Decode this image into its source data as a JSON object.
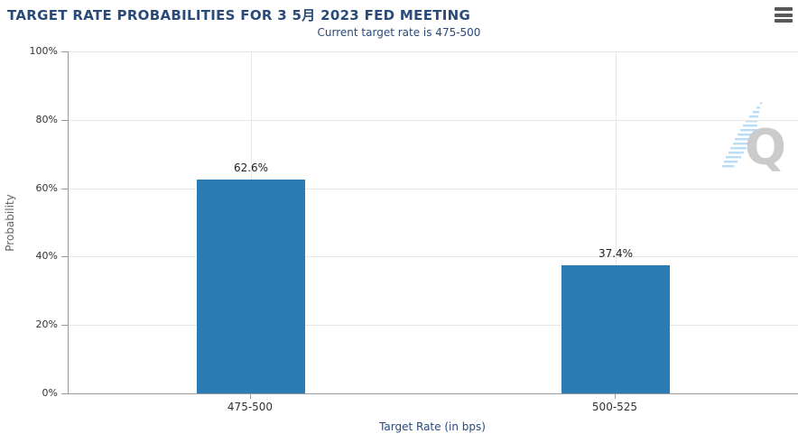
{
  "header": {
    "title": "TARGET RATE PROBABILITIES FOR 3 5月 2023 FED MEETING",
    "subtitle": "Current target rate is 475-500",
    "menu_icon": "hamburger-icon"
  },
  "chart_data": {
    "type": "bar",
    "title": "TARGET RATE PROBABILITIES FOR 3 5月 2023 FED MEETING",
    "subtitle": "Current target rate is 475-500",
    "categories": [
      "475-500",
      "500-525"
    ],
    "values": [
      62.6,
      37.4
    ],
    "value_labels": [
      "62.6%",
      "37.4%"
    ],
    "xlabel": "Target Rate (in bps)",
    "ylabel": "Probability",
    "ylim": [
      0,
      100
    ],
    "yticks": [
      0,
      20,
      40,
      60,
      80,
      100
    ],
    "ytick_labels": [
      "0%",
      "20%",
      "40%",
      "60%",
      "80%",
      "100%"
    ],
    "grid": true,
    "legend": "none",
    "bar_color": "#2b7cb5"
  },
  "colors": {
    "title_text": "#2a4a7a",
    "axis_line": "#999999",
    "gridline": "#e7e7e7",
    "bar": "#2b7cb5",
    "tick_text": "#333333",
    "y_axis_title_text": "#666666"
  },
  "watermark": {
    "letter": "Q"
  }
}
